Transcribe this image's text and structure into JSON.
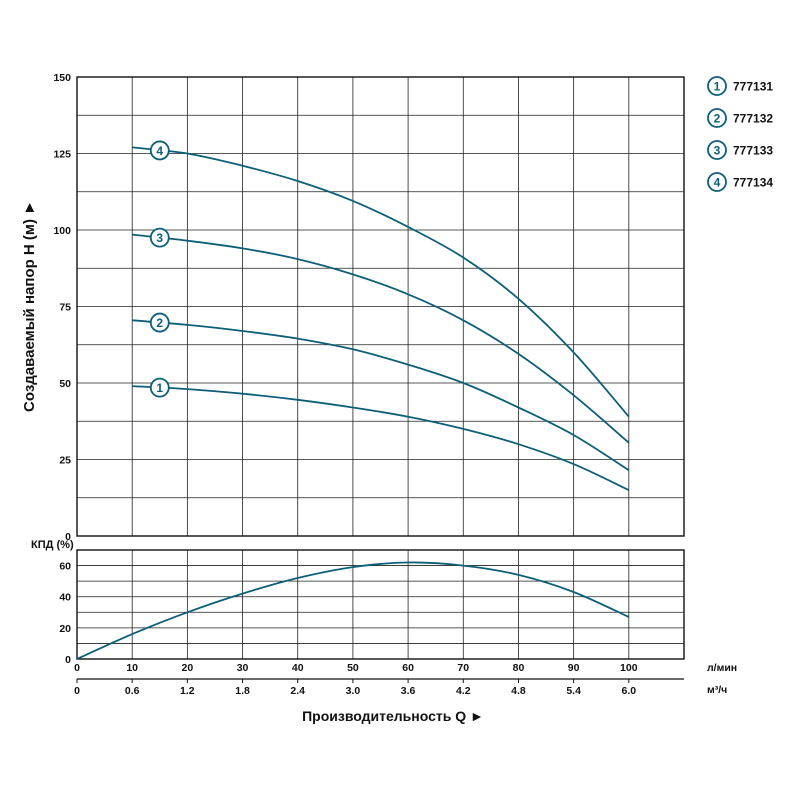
{
  "chart_data": [
    {
      "type": "line",
      "panel": "head",
      "ylabel": "Создаваемый напор H (м) ►",
      "ylim": [
        0,
        150
      ],
      "yticks": [
        0,
        25,
        50,
        75,
        100,
        125,
        150
      ],
      "xlim": [
        0,
        110
      ],
      "series": [
        {
          "name": "777131",
          "marker": "1",
          "x": [
            10,
            20,
            30,
            40,
            50,
            60,
            70,
            80,
            90,
            100
          ],
          "y": [
            49,
            48,
            46.5,
            44.5,
            42,
            39,
            35,
            30,
            23.5,
            15
          ]
        },
        {
          "name": "777132",
          "marker": "2",
          "x": [
            10,
            20,
            30,
            40,
            50,
            60,
            70,
            80,
            90,
            100
          ],
          "y": [
            70.5,
            69,
            67,
            64.5,
            61,
            56,
            50,
            42,
            33,
            21.5
          ]
        },
        {
          "name": "777133",
          "marker": "3",
          "x": [
            10,
            20,
            30,
            40,
            50,
            60,
            70,
            80,
            90,
            100
          ],
          "y": [
            98.5,
            96.5,
            94,
            90.5,
            85.5,
            79,
            70.5,
            59.5,
            46,
            30.5
          ]
        },
        {
          "name": "777134",
          "marker": "4",
          "x": [
            10,
            20,
            30,
            40,
            50,
            60,
            70,
            80,
            90,
            100
          ],
          "y": [
            127,
            125,
            121,
            116,
            109.5,
            101,
            91,
            77.5,
            60,
            39
          ]
        }
      ]
    },
    {
      "type": "line",
      "panel": "efficiency",
      "ylabel": "КПД (%)",
      "ylim": [
        0,
        70
      ],
      "yticks": [
        0,
        20,
        40,
        60
      ],
      "xlim": [
        0,
        110
      ],
      "series": [
        {
          "name": "КПД",
          "x": [
            0,
            10,
            20,
            30,
            40,
            50,
            60,
            70,
            80,
            90,
            100
          ],
          "y": [
            0,
            16,
            30,
            42,
            52,
            59,
            62,
            60,
            54,
            43,
            27
          ]
        }
      ]
    }
  ],
  "x_axis": {
    "title": "Производительность Q ►",
    "lmin_unit": "л/мин",
    "m3h_unit": "м³/ч",
    "lmin_ticks": [
      {
        "v": 0,
        "label": "0"
      },
      {
        "v": 10,
        "label": "10"
      },
      {
        "v": 20,
        "label": "20"
      },
      {
        "v": 30,
        "label": "30"
      },
      {
        "v": 40,
        "label": "40"
      },
      {
        "v": 50,
        "label": "50"
      },
      {
        "v": 60,
        "label": "60"
      },
      {
        "v": 70,
        "label": "70"
      },
      {
        "v": 80,
        "label": "80"
      },
      {
        "v": 90,
        "label": "90"
      },
      {
        "v": 100,
        "label": "100"
      }
    ],
    "m3h_ticks": [
      {
        "v": 0,
        "label": "0"
      },
      {
        "v": 10,
        "label": "0.6"
      },
      {
        "v": 20,
        "label": "1.2"
      },
      {
        "v": 30,
        "label": "1.8"
      },
      {
        "v": 40,
        "label": "2.4"
      },
      {
        "v": 50,
        "label": "3.0"
      },
      {
        "v": 60,
        "label": "3.6"
      },
      {
        "v": 70,
        "label": "4.2"
      },
      {
        "v": 80,
        "label": "4.8"
      },
      {
        "v": 90,
        "label": "5.4"
      },
      {
        "v": 100,
        "label": "6.0"
      }
    ]
  },
  "legend": [
    {
      "number": "1",
      "model": "777131"
    },
    {
      "number": "2",
      "model": "777132"
    },
    {
      "number": "3",
      "model": "777133"
    },
    {
      "number": "4",
      "model": "777134"
    }
  ],
  "colors": {
    "curve": "#0d5f78",
    "grid": "#222222"
  }
}
